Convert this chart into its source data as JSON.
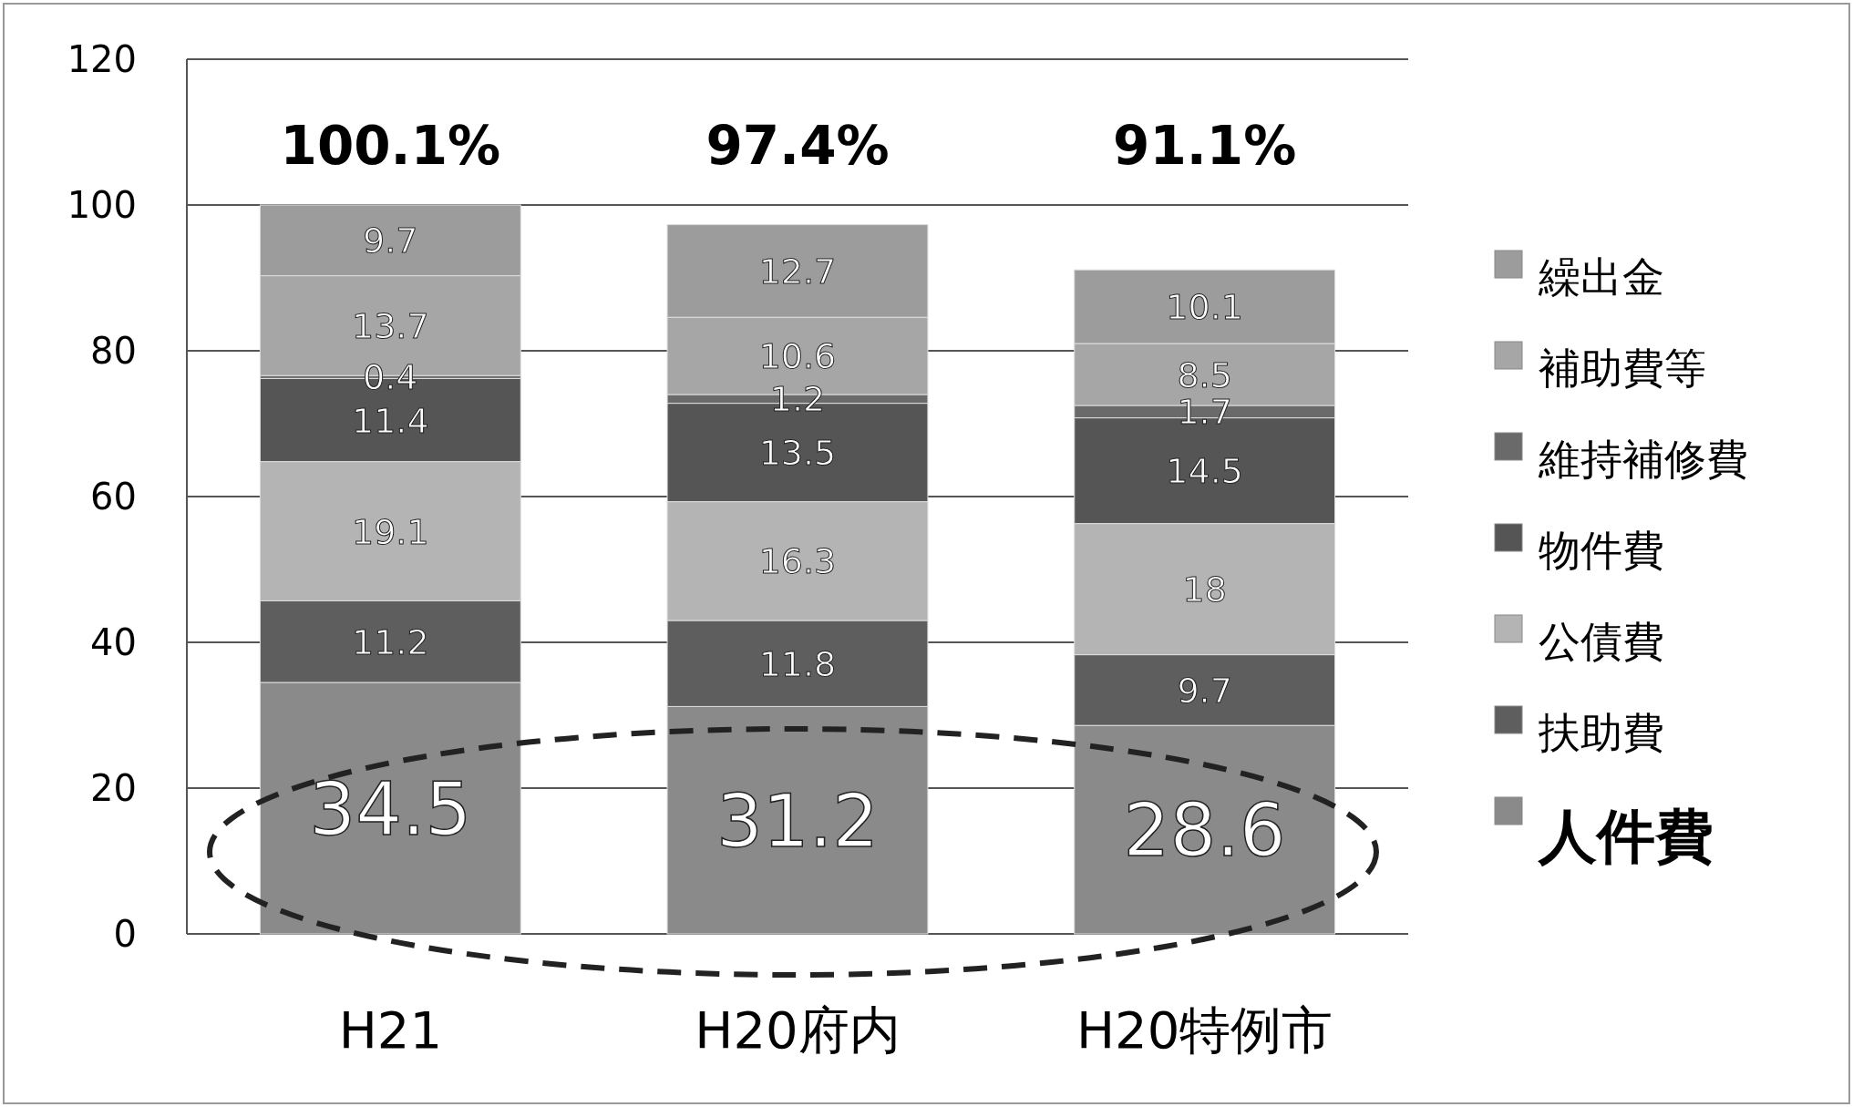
{
  "chart_data": {
    "type": "bar",
    "stacked": true,
    "categories": [
      "H21",
      "H20府内",
      "H20特例市"
    ],
    "series": [
      {
        "name": "人件費",
        "color": "#8a8a8a",
        "values": [
          34.5,
          31.2,
          28.6
        ]
      },
      {
        "name": "扶助費",
        "color": "#5e5e5e",
        "values": [
          11.2,
          11.8,
          9.7
        ]
      },
      {
        "name": "公債費",
        "color": "#b4b4b4",
        "values": [
          19.1,
          16.3,
          18
        ]
      },
      {
        "name": "物件費",
        "color": "#555555",
        "values": [
          11.4,
          13.5,
          14.5
        ]
      },
      {
        "name": "維持補修費",
        "color": "#6a6a6a",
        "values": [
          0.4,
          1.2,
          1.7
        ]
      },
      {
        "name": "補助費等",
        "color": "#a6a6a6",
        "values": [
          13.7,
          10.6,
          8.5
        ]
      },
      {
        "name": "繰出金",
        "color": "#9c9c9c",
        "values": [
          9.7,
          12.7,
          10.1
        ]
      }
    ],
    "totals": [
      "100.1%",
      "97.4%",
      "91.1%"
    ],
    "ylim": [
      0,
      120
    ],
    "yticks": [
      0,
      20,
      40,
      60,
      80,
      100,
      120
    ],
    "grid": "y",
    "legend": "right",
    "data_labels": true
  }
}
